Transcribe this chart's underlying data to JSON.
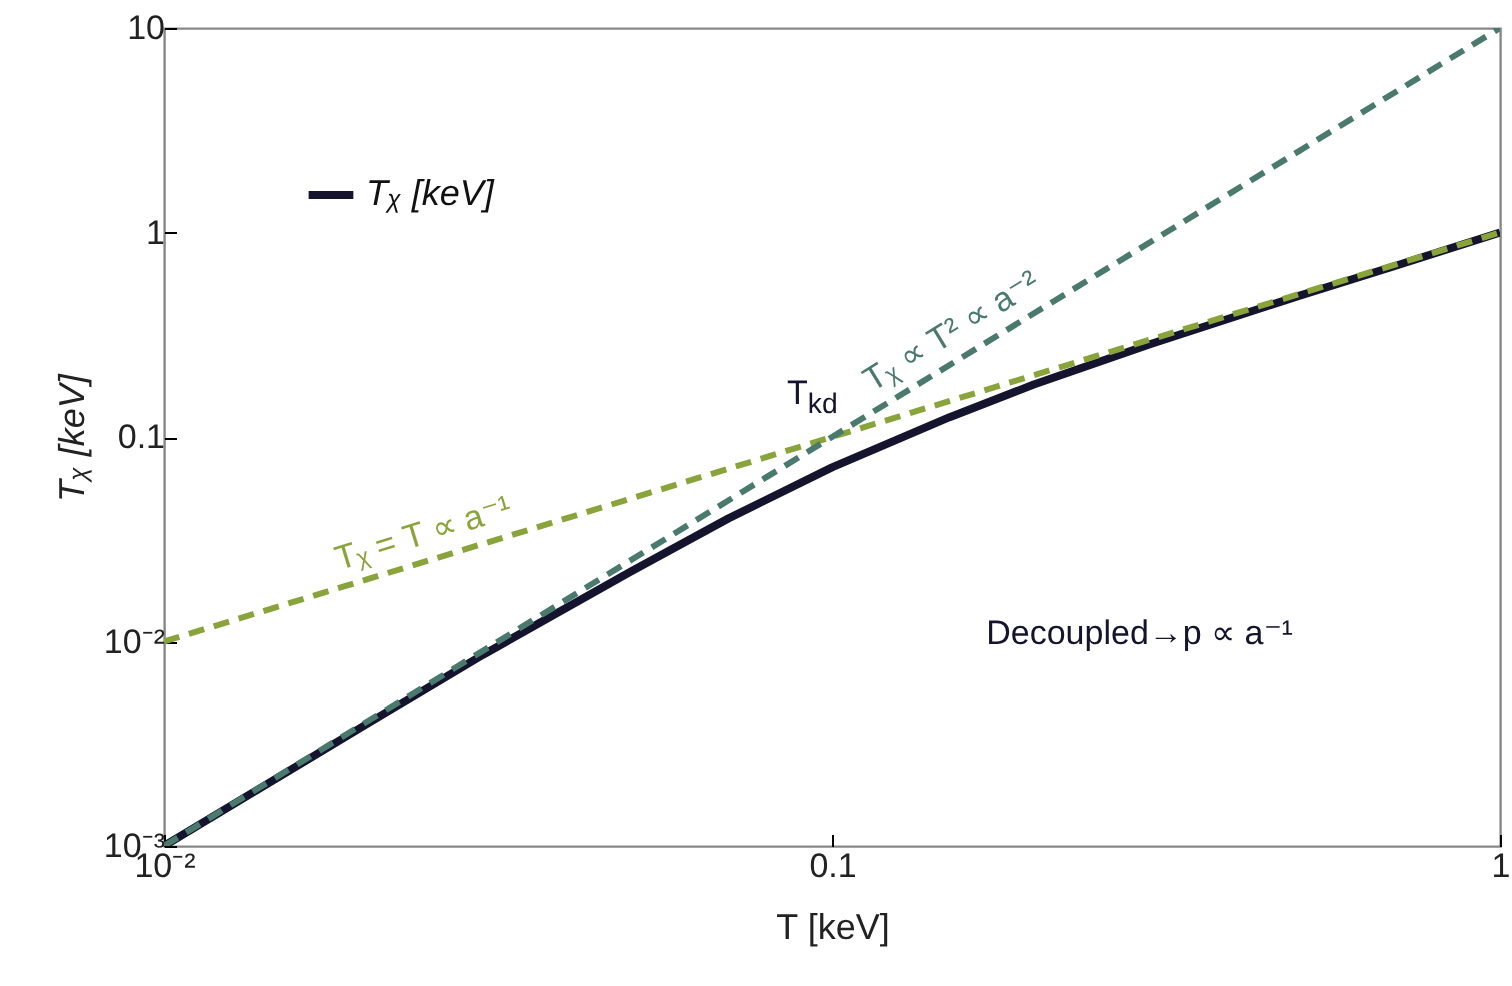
{
  "chart_data": {
    "type": "line",
    "xlabel": "T [keV]",
    "ylabel": "Tᵪ [keV]",
    "log": "xy",
    "legend": "top left",
    "xlim": [
      0.01,
      1
    ],
    "ylim": [
      0.001,
      10
    ],
    "xticks": [
      {
        "value": 0.01,
        "label": "10⁻²"
      },
      0.1,
      1
    ],
    "yticks": [
      {
        "value": 0.001,
        "label": "10⁻³"
      },
      {
        "value": 0.01,
        "label": "10⁻²"
      },
      0.1,
      1,
      10
    ],
    "series": [
      {
        "name": "Tᵪ [keV]",
        "color": "#14142e",
        "line_style": "solid",
        "x": [
          0.01,
          0.02,
          0.03,
          0.05,
          0.07,
          0.1,
          0.15,
          0.2,
          0.3,
          0.5,
          0.7,
          1
        ],
        "values": [
          0.001,
          0.0039,
          0.0086,
          0.022,
          0.04,
          0.071,
          0.125,
          0.18,
          0.285,
          0.49,
          0.69,
          1.0
        ]
      },
      {
        "name": "Tᵪ = T ∝ a⁻¹",
        "color": "#8aa43c",
        "line_style": "dashed",
        "x": [
          0.01,
          1
        ],
        "values": [
          0.01,
          1
        ]
      },
      {
        "name": "Tᵪ ∝ T² ∝ a⁻²",
        "color": "#4a7a6e",
        "line_style": "dashed",
        "x": [
          0.01,
          1
        ],
        "values": [
          0.001,
          10
        ]
      }
    ],
    "annotations": [
      "T$_{kd}$",
      "Decoupled→p ∝ a⁻¹"
    ]
  }
}
